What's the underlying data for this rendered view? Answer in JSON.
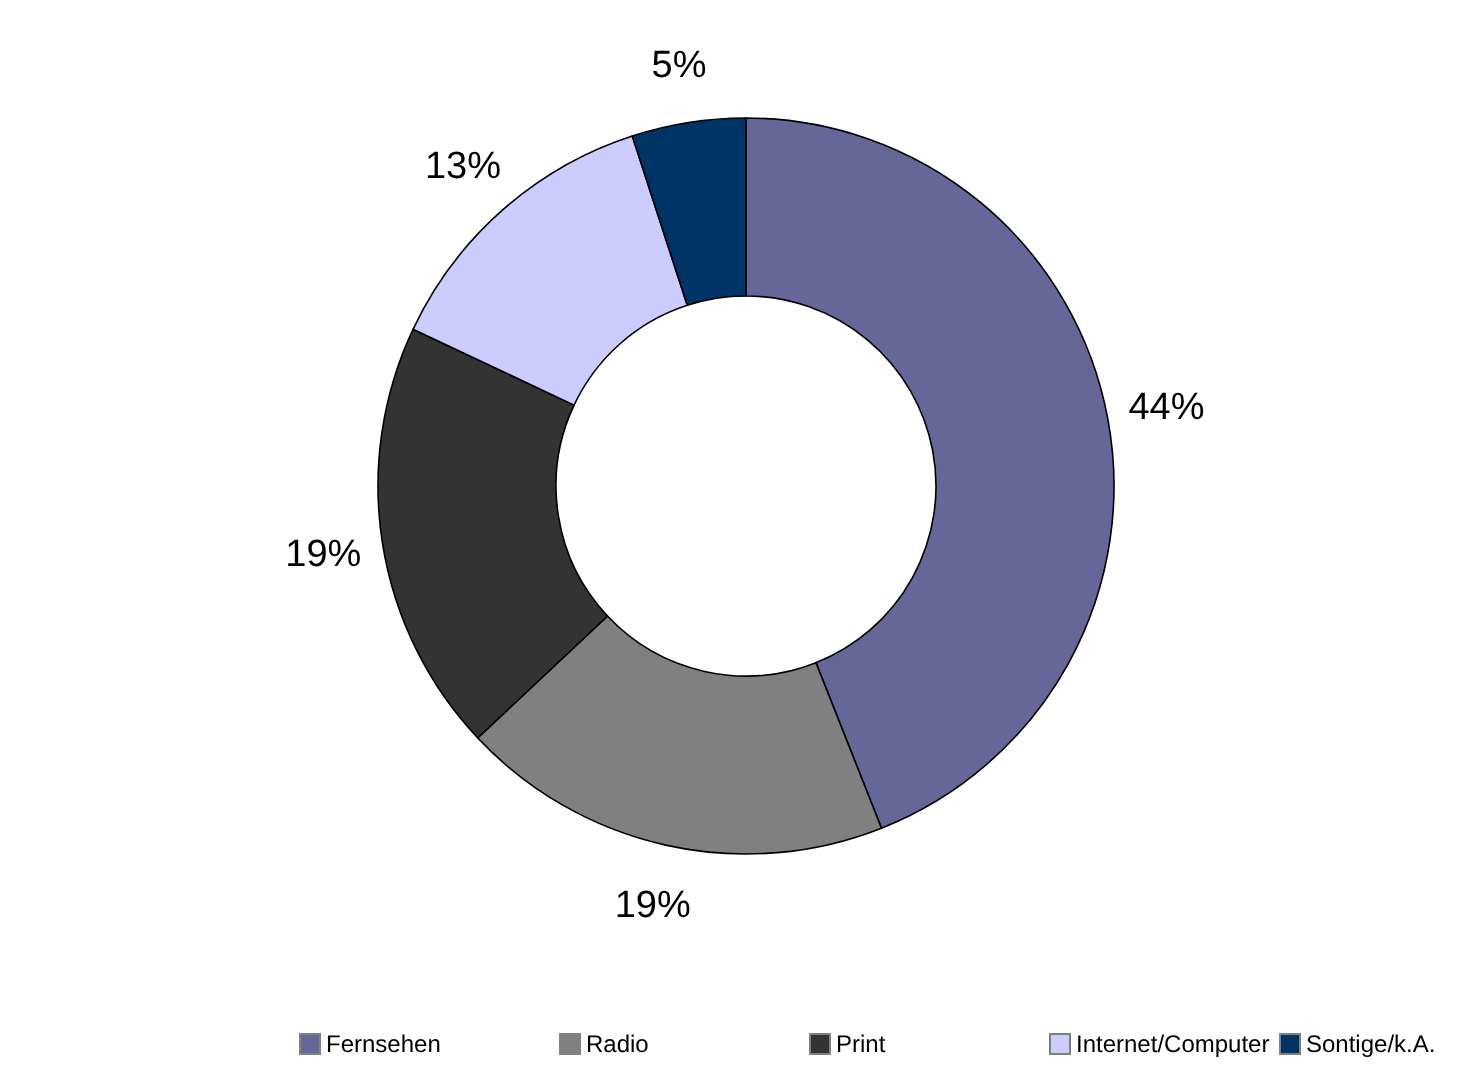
{
  "chart_data": {
    "type": "donut",
    "categories": [
      "Fernsehen",
      "Radio",
      "Print",
      "Internet/Computer",
      "Sontige/k.A."
    ],
    "values": [
      44,
      19,
      19,
      13,
      5
    ],
    "colors": [
      "#666699",
      "#808080",
      "#333333",
      "#ccccff",
      "#003366"
    ],
    "value_labels": [
      "44%",
      "19%",
      "19%",
      "13%",
      "5%"
    ],
    "legend": "bottom"
  }
}
